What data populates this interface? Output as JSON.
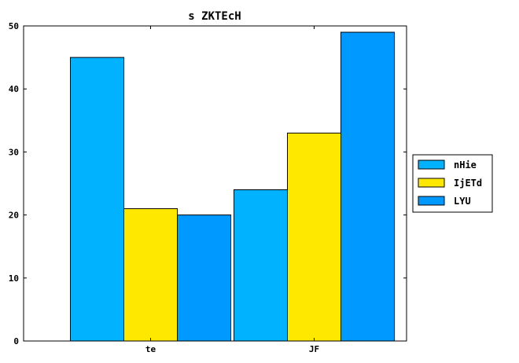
{
  "chart_data": {
    "type": "bar",
    "title": "s ZKTEcH",
    "xlabel": "",
    "ylabel": "",
    "categories": [
      "te",
      "JF"
    ],
    "series": [
      {
        "name": "nHie",
        "values": [
          45,
          24
        ],
        "color": "#00b2ff"
      },
      {
        "name": "IjETd",
        "values": [
          21,
          33
        ],
        "color": "#ffe800"
      },
      {
        "name": "LYU",
        "values": [
          20,
          49
        ],
        "color": "#0099ff"
      }
    ],
    "ylim": [
      0,
      50
    ],
    "yticks": [
      0,
      10,
      20,
      30,
      40,
      50
    ],
    "grid": false,
    "legend": "center-right, outside plot"
  }
}
